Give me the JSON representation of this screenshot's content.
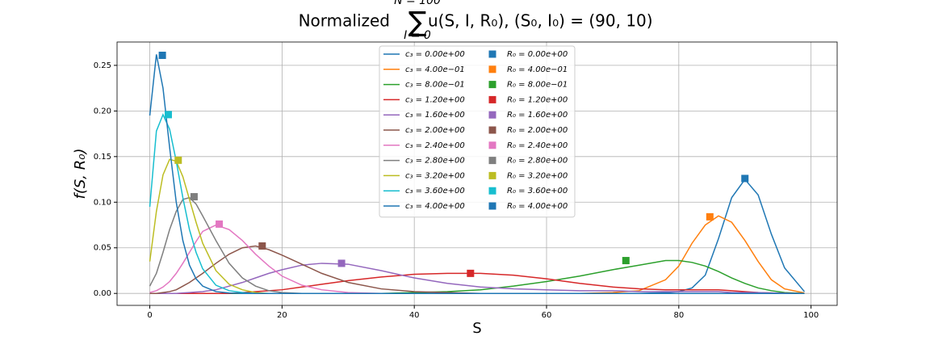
{
  "chart_data": {
    "type": "line",
    "title": "Normalized",
    "title_sum": "∑",
    "title_sum_upper": "N = 100",
    "title_sum_lower": "I = 0",
    "title_rest": "u(S, I, R₀), (S₀, I₀) = (90, 10)",
    "xlabel": "S",
    "ylabel": "f(S, R₀)",
    "xlim": [
      -4.95,
      103.95
    ],
    "ylim": [
      -0.0131,
      0.2756
    ],
    "xticks": [
      0,
      20,
      40,
      60,
      80,
      100
    ],
    "yticks": [
      {
        "value": 0,
        "label": "0.00"
      },
      {
        "value": 0.05,
        "label": "0.05"
      },
      {
        "value": 0.1,
        "label": "0.10"
      },
      {
        "value": 0.15,
        "label": "0.15"
      },
      {
        "value": 0.2,
        "label": "0.20"
      },
      {
        "value": 0.25,
        "label": "0.25"
      }
    ],
    "grid": true,
    "legend": "upper center",
    "x": [
      0,
      1,
      2,
      3,
      4,
      5,
      6,
      7,
      8,
      10,
      12,
      14,
      16,
      18,
      20,
      23,
      26,
      30,
      35,
      40,
      45,
      50,
      55,
      60,
      65,
      70,
      74,
      78,
      80,
      82,
      84,
      86,
      88,
      90,
      92,
      94,
      96,
      99
    ],
    "series": [
      {
        "name": "c₃ = 0.00e+00",
        "color": "#1f77b4",
        "values": [
          0,
          0,
          0,
          0,
          0,
          0,
          0,
          0,
          0,
          0,
          0,
          0,
          0,
          0,
          0,
          0,
          0,
          0,
          0,
          0,
          0,
          0,
          0,
          0,
          0,
          0,
          0,
          0.001,
          0.002,
          0.006,
          0.02,
          0.06,
          0.105,
          0.125,
          0.108,
          0.065,
          0.028,
          0.002
        ]
      },
      {
        "name": "c₃ = 4.00e−01",
        "color": "#ff7f0e",
        "values": [
          0,
          0,
          0,
          0,
          0,
          0,
          0,
          0,
          0,
          0,
          0,
          0,
          0,
          0,
          0,
          0,
          0,
          0,
          0,
          0,
          0,
          0,
          0,
          0,
          0,
          0.001,
          0.003,
          0.015,
          0.03,
          0.055,
          0.075,
          0.085,
          0.078,
          0.058,
          0.035,
          0.015,
          0.005,
          0.0005
        ]
      },
      {
        "name": "c₃ = 8.00e−01",
        "color": "#2ca02c",
        "values": [
          0,
          0,
          0,
          0,
          0,
          0,
          0,
          0,
          0,
          0,
          0,
          0,
          0,
          0,
          0,
          0,
          0,
          0,
          0,
          0.001,
          0.002,
          0.004,
          0.008,
          0.013,
          0.019,
          0.026,
          0.031,
          0.036,
          0.036,
          0.034,
          0.03,
          0.024,
          0.017,
          0.011,
          0.006,
          0.003,
          0.001,
          0
        ]
      },
      {
        "name": "c₃ = 1.20e+00",
        "color": "#d62728",
        "values": [
          0,
          0,
          0,
          0,
          0,
          0,
          0,
          0,
          0,
          0,
          0,
          0.001,
          0.002,
          0.003,
          0.004,
          0.007,
          0.01,
          0.014,
          0.018,
          0.021,
          0.022,
          0.022,
          0.02,
          0.016,
          0.011,
          0.007,
          0.005,
          0.004,
          0.004,
          0.004,
          0.004,
          0.004,
          0.003,
          0.002,
          0.001,
          0.0005,
          0.0002,
          0
        ]
      },
      {
        "name": "c₃ = 1.60e+00",
        "color": "#9467bd",
        "values": [
          0,
          0,
          0,
          0,
          0,
          0.0005,
          0.001,
          0.0015,
          0.002,
          0.004,
          0.008,
          0.012,
          0.017,
          0.022,
          0.026,
          0.031,
          0.033,
          0.032,
          0.025,
          0.017,
          0.011,
          0.007,
          0.005,
          0.004,
          0.003,
          0.003,
          0.002,
          0.002,
          0.002,
          0.002,
          0.002,
          0.002,
          0.001,
          0.001,
          0.001,
          0.0005,
          0.0002,
          0
        ]
      },
      {
        "name": "c₃ = 2.00e+00",
        "color": "#8c564b",
        "values": [
          0,
          0,
          0.001,
          0.002,
          0.004,
          0.008,
          0.012,
          0.017,
          0.022,
          0.033,
          0.043,
          0.05,
          0.052,
          0.048,
          0.042,
          0.032,
          0.022,
          0.012,
          0.005,
          0.002,
          0.001,
          0,
          0,
          0,
          0,
          0,
          0,
          0,
          0,
          0,
          0,
          0,
          0,
          0,
          0,
          0,
          0,
          0
        ]
      },
      {
        "name": "c₃ = 2.40e+00",
        "color": "#e377c2",
        "values": [
          0.001,
          0.003,
          0.007,
          0.013,
          0.022,
          0.033,
          0.045,
          0.057,
          0.068,
          0.075,
          0.07,
          0.058,
          0.043,
          0.03,
          0.019,
          0.009,
          0.004,
          0.001,
          0,
          0,
          0,
          0,
          0,
          0,
          0,
          0,
          0,
          0,
          0,
          0,
          0,
          0,
          0,
          0,
          0,
          0,
          0,
          0
        ]
      },
      {
        "name": "c₃ = 2.80e+00",
        "color": "#7f7f7f",
        "values": [
          0.008,
          0.022,
          0.045,
          0.07,
          0.09,
          0.103,
          0.105,
          0.098,
          0.085,
          0.058,
          0.033,
          0.017,
          0.008,
          0.003,
          0.001,
          0,
          0,
          0,
          0,
          0,
          0,
          0,
          0,
          0,
          0,
          0,
          0,
          0,
          0,
          0,
          0,
          0,
          0,
          0,
          0,
          0,
          0,
          0
        ]
      },
      {
        "name": "c₃ = 3.20e+00",
        "color": "#bcbd22",
        "values": [
          0.035,
          0.09,
          0.13,
          0.147,
          0.145,
          0.128,
          0.103,
          0.078,
          0.055,
          0.025,
          0.01,
          0.004,
          0.001,
          0,
          0,
          0,
          0,
          0,
          0,
          0,
          0,
          0,
          0,
          0,
          0,
          0,
          0,
          0,
          0,
          0,
          0,
          0,
          0,
          0,
          0,
          0,
          0,
          0
        ]
      },
      {
        "name": "c₃ = 3.60e+00",
        "color": "#17becf",
        "values": [
          0.095,
          0.178,
          0.196,
          0.18,
          0.145,
          0.105,
          0.07,
          0.045,
          0.027,
          0.009,
          0.003,
          0.001,
          0,
          0,
          0,
          0,
          0,
          0,
          0,
          0,
          0,
          0,
          0,
          0,
          0,
          0,
          0,
          0,
          0,
          0,
          0,
          0,
          0,
          0,
          0,
          0,
          0,
          0
        ]
      },
      {
        "name": "c₃ = 4.00e+00",
        "color": "#1f77b4",
        "values": [
          0.195,
          0.262,
          0.225,
          0.16,
          0.1,
          0.058,
          0.031,
          0.016,
          0.008,
          0.002,
          0.0005,
          0,
          0,
          0,
          0,
          0,
          0,
          0,
          0,
          0,
          0,
          0,
          0,
          0,
          0,
          0,
          0,
          0,
          0,
          0,
          0,
          0,
          0,
          0,
          0,
          0,
          0,
          0
        ]
      }
    ],
    "markers": [
      {
        "name": "R₀ = 0.00e+00",
        "color": "#1f77b4",
        "x": 90,
        "y": 0.126
      },
      {
        "name": "R₀ = 4.00e−01",
        "color": "#ff7f0e",
        "x": 84.7,
        "y": 0.084
      },
      {
        "name": "R₀ = 8.00e−01",
        "color": "#2ca02c",
        "x": 72,
        "y": 0.036
      },
      {
        "name": "R₀ = 1.20e+00",
        "color": "#d62728",
        "x": 48.5,
        "y": 0.022
      },
      {
        "name": "R₀ = 1.60e+00",
        "color": "#9467bd",
        "x": 29,
        "y": 0.033
      },
      {
        "name": "R₀ = 2.00e+00",
        "color": "#8c564b",
        "x": 17,
        "y": 0.052
      },
      {
        "name": "R₀ = 2.40e+00",
        "color": "#e377c2",
        "x": 10.5,
        "y": 0.076
      },
      {
        "name": "R₀ = 2.80e+00",
        "color": "#7f7f7f",
        "x": 6.7,
        "y": 0.106
      },
      {
        "name": "R₀ = 3.20e+00",
        "color": "#bcbd22",
        "x": 4.3,
        "y": 0.146
      },
      {
        "name": "R₀ = 3.60e+00",
        "color": "#17becf",
        "x": 2.8,
        "y": 0.196
      },
      {
        "name": "R₀ = 4.00e+00",
        "color": "#1f77b4",
        "x": 1.9,
        "y": 0.261
      }
    ]
  }
}
